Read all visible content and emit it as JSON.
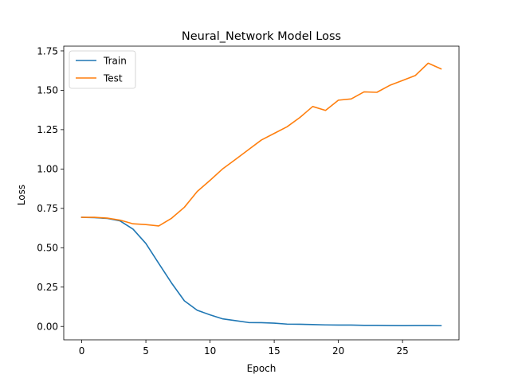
{
  "chart_data": {
    "type": "line",
    "title": "Neural_Network Model Loss",
    "xlabel": "Epoch",
    "ylabel": "Loss",
    "xlim": [
      -1.4,
      29.4
    ],
    "ylim": [
      -0.0848,
      1.7801
    ],
    "xticks": [
      0,
      5,
      10,
      15,
      20,
      25
    ],
    "xtick_labels": [
      "0",
      "5",
      "10",
      "15",
      "20",
      "25"
    ],
    "yticks": [
      0.0,
      0.25,
      0.5,
      0.75,
      1.0,
      1.25,
      1.5,
      1.75
    ],
    "ytick_labels": [
      "0.00",
      "0.25",
      "0.50",
      "0.75",
      "1.00",
      "1.25",
      "1.50",
      "1.75"
    ],
    "grid": false,
    "legend_position": "top-left",
    "x": [
      0,
      1,
      2,
      3,
      4,
      5,
      6,
      7,
      8,
      9,
      10,
      11,
      12,
      13,
      14,
      15,
      16,
      17,
      18,
      19,
      20,
      21,
      22,
      23,
      24,
      25,
      26,
      27,
      28
    ],
    "series": [
      {
        "name": "Train",
        "color": "#1f77b4",
        "values": [
          0.693,
          0.691,
          0.686,
          0.67,
          0.618,
          0.527,
          0.401,
          0.276,
          0.163,
          0.103,
          0.074,
          0.048,
          0.037,
          0.025,
          0.024,
          0.021,
          0.015,
          0.014,
          0.012,
          0.01,
          0.009,
          0.009,
          0.007,
          0.007,
          0.006,
          0.005,
          0.006,
          0.006,
          0.005
        ]
      },
      {
        "name": "Test",
        "color": "#ff7f0e",
        "values": [
          0.693,
          0.693,
          0.688,
          0.675,
          0.652,
          0.647,
          0.638,
          0.687,
          0.757,
          0.857,
          0.928,
          1.002,
          1.062,
          1.123,
          1.184,
          1.226,
          1.268,
          1.327,
          1.397,
          1.372,
          1.437,
          1.445,
          1.49,
          1.487,
          1.531,
          1.562,
          1.594,
          1.672,
          1.636
        ]
      }
    ]
  }
}
